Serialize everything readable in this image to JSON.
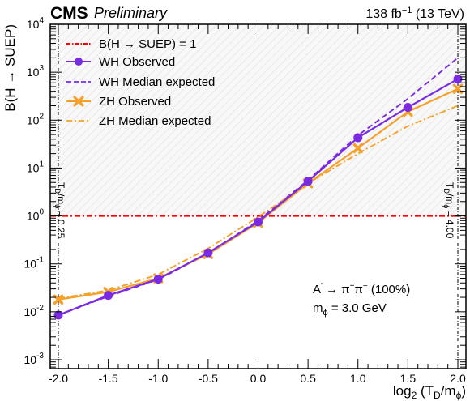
{
  "header": {
    "experiment": "CMS",
    "status": "Preliminary",
    "lumi_prefix": "138 fb",
    "lumi_exponent": "−1",
    "lumi_suffix": " (13 TeV)"
  },
  "annotation": {
    "process_base": "A",
    "process_prime": "'",
    "process_arrow": " → ",
    "process_pi1": "π",
    "process_pi1_sign": "+",
    "process_pi2": "π",
    "process_pi2_sign": "−",
    "process_fraction": " (100%)",
    "mass_symbol": "m",
    "mass_sub": "ϕ",
    "mass_value": " = 3.0 GeV"
  },
  "vertical_labels": {
    "left": "T",
    "left_sub": "D",
    "left_rest": "/m",
    "left_sub2": "ϕ",
    "left_value": " = 0.25",
    "right": "T",
    "right_sub": "D",
    "right_rest": "/m",
    "right_sub2": "ϕ",
    "right_value": " = 4.00"
  },
  "chart_data": {
    "type": "line",
    "xlabel_base": "log",
    "xlabel_sub": "2",
    "xlabel_rest": " (T",
    "xlabel_sub2": "D",
    "xlabel_rest2": "/m",
    "xlabel_sub3": "ϕ",
    "xlabel_end": ")",
    "ylabel_base": "B(H ",
    "ylabel_arrow": "→",
    "ylabel_end": " SUEP)",
    "xlim": [
      -2.05,
      2.05
    ],
    "ylim": [
      0.0003,
      10000
    ],
    "yscale": "log",
    "xticks": [
      -2.0,
      -1.5,
      -1.0,
      -0.5,
      0.0,
      0.5,
      1.0,
      1.5,
      2.0
    ],
    "xtick_labels": [
      "-2.0",
      "-1.5",
      "-1.0",
      "-0.5",
      "0.0",
      "0.5",
      "1.0",
      "1.5",
      "2.0"
    ],
    "yticks": [
      {
        "value": 0.001,
        "base": "10",
        "exp": "-3"
      },
      {
        "value": 0.01,
        "base": "10",
        "exp": "-2"
      },
      {
        "value": 0.1,
        "base": "10",
        "exp": "-1"
      },
      {
        "value": 1,
        "base": "10",
        "exp": "0"
      },
      {
        "value": 10,
        "base": "10",
        "exp": "1"
      },
      {
        "value": 100,
        "base": "10",
        "exp": "2"
      },
      {
        "value": 1000,
        "base": "10",
        "exp": "3"
      },
      {
        "value": 10000,
        "base": "10",
        "exp": "4"
      }
    ],
    "excluded_region_above": 1,
    "reference_line": {
      "name": "B(H  →  SUEP) = 1",
      "value": 1,
      "color": "#ff0000"
    },
    "series": [
      {
        "name": "WH Observed",
        "color": "#7a2be2",
        "style": "solid",
        "marker": "circle",
        "x": [
          -2.0,
          -1.5,
          -1.0,
          -0.5,
          0.0,
          0.5,
          1.0,
          1.5,
          2.0
        ],
        "y": [
          0.0085,
          0.022,
          0.048,
          0.17,
          0.75,
          5.3,
          43,
          185,
          720
        ]
      },
      {
        "name": "WH Median expected",
        "color": "#7a2be2",
        "style": "dashed",
        "marker": "none",
        "x": [
          -2.0,
          -1.5,
          -1.0,
          -0.5,
          0.0,
          0.5,
          1.0,
          1.5,
          2.0
        ],
        "y": [
          0.0085,
          0.021,
          0.047,
          0.165,
          0.8,
          5.6,
          48,
          280,
          2000
        ]
      },
      {
        "name": "ZH Observed",
        "color": "#f5a02b",
        "style": "solid",
        "marker": "x",
        "x": [
          -2.0,
          -1.5,
          -1.0,
          -0.5,
          0.0,
          0.5,
          1.0,
          1.5,
          2.0
        ],
        "y": [
          0.018,
          0.026,
          0.05,
          0.16,
          0.72,
          4.8,
          26,
          150,
          450
        ]
      },
      {
        "name": "ZH Median expected",
        "color": "#f5a02b",
        "style": "dashdot",
        "marker": "none",
        "x": [
          -2.0,
          -1.5,
          -1.0,
          -0.5,
          0.0,
          0.5,
          1.0,
          1.5,
          2.0
        ],
        "y": [
          0.019,
          0.028,
          0.06,
          0.21,
          0.95,
          4.8,
          20,
          75,
          200
        ]
      }
    ],
    "legend_position": "top-left",
    "grid": false
  }
}
